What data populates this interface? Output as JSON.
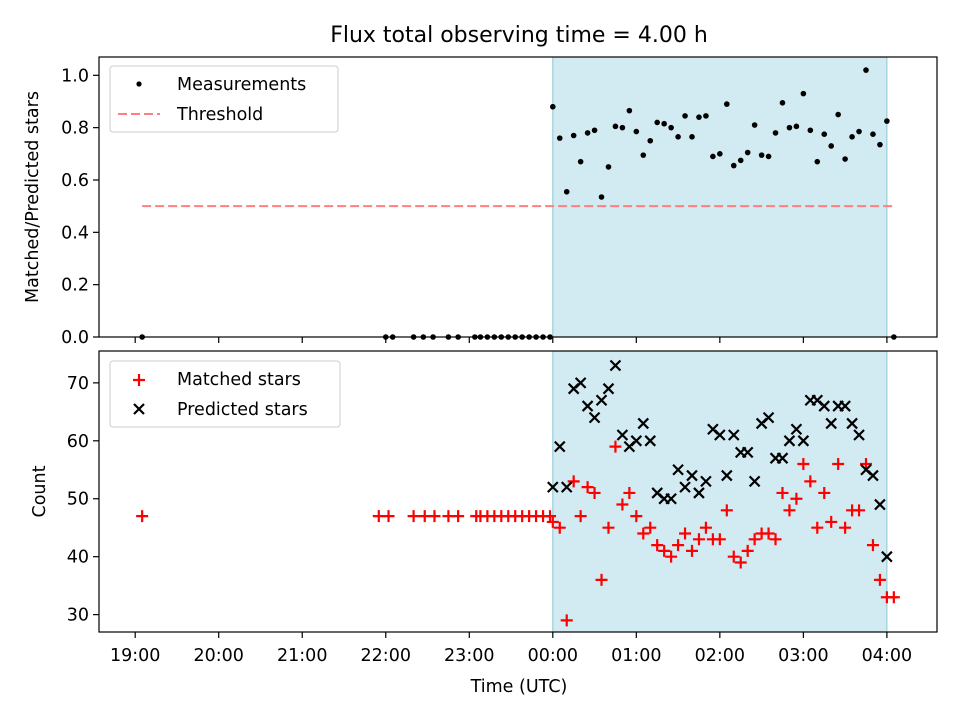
{
  "chart_data": [
    {
      "type": "scatter",
      "title": "Flux total observing time = 4.00 h",
      "ylabel": "Matched/Predicted stars",
      "xlabel": "",
      "ylim": [
        0,
        1.07
      ],
      "yticks": [
        "0.0",
        "0.2",
        "0.4",
        "0.6",
        "0.8",
        "1.0"
      ],
      "ytick_values": [
        0,
        0.2,
        0.4,
        0.6,
        0.8,
        1.0
      ],
      "grid": false,
      "legend_position": "top-left",
      "shaded_interval": {
        "start": "00:00",
        "end": "04:00",
        "color": "#add8e6"
      },
      "series": [
        {
          "name": "Measurements",
          "marker": "dot",
          "color": "#000000",
          "points": [
            [
              "19:05",
              0.0
            ],
            [
              "22:00",
              0.0
            ],
            [
              "22:05",
              0.0
            ],
            [
              "22:20",
              0.0
            ],
            [
              "22:27",
              0.0
            ],
            [
              "22:34",
              0.0
            ],
            [
              "22:45",
              0.0
            ],
            [
              "22:52",
              0.0
            ],
            [
              "23:04",
              0.0
            ],
            [
              "23:08",
              0.0
            ],
            [
              "23:13",
              0.0
            ],
            [
              "23:18",
              0.0
            ],
            [
              "23:23",
              0.0
            ],
            [
              "23:28",
              0.0
            ],
            [
              "23:33",
              0.0
            ],
            [
              "23:38",
              0.0
            ],
            [
              "23:43",
              0.0
            ],
            [
              "23:48",
              0.0
            ],
            [
              "23:53",
              0.0
            ],
            [
              "23:58",
              0.0
            ],
            [
              "00:00",
              0.88
            ],
            [
              "00:05",
              0.76
            ],
            [
              "00:10",
              0.555
            ],
            [
              "00:15",
              0.77
            ],
            [
              "00:20",
              0.67
            ],
            [
              "00:25",
              0.78
            ],
            [
              "00:30",
              0.79
            ],
            [
              "00:35",
              0.535
            ],
            [
              "00:40",
              0.65
            ],
            [
              "00:45",
              0.805
            ],
            [
              "00:50",
              0.8
            ],
            [
              "00:55",
              0.865
            ],
            [
              "01:00",
              0.785
            ],
            [
              "01:05",
              0.695
            ],
            [
              "01:10",
              0.75
            ],
            [
              "01:15",
              0.82
            ],
            [
              "01:20",
              0.815
            ],
            [
              "01:25",
              0.8
            ],
            [
              "01:30",
              0.765
            ],
            [
              "01:35",
              0.845
            ],
            [
              "01:40",
              0.765
            ],
            [
              "01:45",
              0.84
            ],
            [
              "01:50",
              0.845
            ],
            [
              "01:55",
              0.69
            ],
            [
              "02:00",
              0.7
            ],
            [
              "02:05",
              0.89
            ],
            [
              "02:10",
              0.655
            ],
            [
              "02:15",
              0.675
            ],
            [
              "02:20",
              0.705
            ],
            [
              "02:25",
              0.81
            ],
            [
              "02:30",
              0.695
            ],
            [
              "02:35",
              0.69
            ],
            [
              "02:40",
              0.78
            ],
            [
              "02:45",
              0.895
            ],
            [
              "02:50",
              0.8
            ],
            [
              "02:55",
              0.805
            ],
            [
              "03:00",
              0.93
            ],
            [
              "03:05",
              0.79
            ],
            [
              "03:10",
              0.67
            ],
            [
              "03:15",
              0.775
            ],
            [
              "03:20",
              0.73
            ],
            [
              "03:25",
              0.85
            ],
            [
              "03:30",
              0.68
            ],
            [
              "03:35",
              0.765
            ],
            [
              "03:40",
              0.785
            ],
            [
              "03:45",
              1.02
            ],
            [
              "03:50",
              0.775
            ],
            [
              "03:55",
              0.735
            ],
            [
              "04:00",
              0.825
            ],
            [
              "04:05",
              0.0
            ]
          ]
        },
        {
          "name": "Threshold",
          "type": "line",
          "style": "dashed",
          "color": "#ff7f7f",
          "points": [
            [
              "19:05",
              0.5
            ],
            [
              "04:05",
              0.5
            ]
          ]
        }
      ]
    },
    {
      "type": "scatter",
      "title": "",
      "ylabel": "Count",
      "xlabel": "Time (UTC)",
      "ylim": [
        27,
        75.5
      ],
      "yticks": [
        "30",
        "40",
        "50",
        "60",
        "70"
      ],
      "ytick_values": [
        30,
        40,
        50,
        60,
        70
      ],
      "xticks": [
        "19:00",
        "20:00",
        "21:00",
        "22:00",
        "23:00",
        "00:00",
        "01:00",
        "02:00",
        "03:00",
        "04:00"
      ],
      "grid": false,
      "legend_position": "top-left",
      "shaded_interval": {
        "start": "00:00",
        "end": "04:00",
        "color": "#add8e6"
      },
      "series": [
        {
          "name": "Matched stars",
          "marker": "plus",
          "color": "#ff0000",
          "points": [
            [
              "19:05",
              47
            ],
            [
              "21:55",
              47
            ],
            [
              "22:02",
              47
            ],
            [
              "22:20",
              47
            ],
            [
              "22:28",
              47
            ],
            [
              "22:35",
              47
            ],
            [
              "22:45",
              47
            ],
            [
              "22:52",
              47
            ],
            [
              "23:05",
              47
            ],
            [
              "23:08",
              47
            ],
            [
              "23:13",
              47
            ],
            [
              "23:18",
              47
            ],
            [
              "23:23",
              47
            ],
            [
              "23:28",
              47
            ],
            [
              "23:33",
              47
            ],
            [
              "23:38",
              47
            ],
            [
              "23:43",
              47
            ],
            [
              "23:48",
              47
            ],
            [
              "23:53",
              47
            ],
            [
              "23:58",
              47
            ],
            [
              "00:00",
              46
            ],
            [
              "00:05",
              45
            ],
            [
              "00:10",
              29
            ],
            [
              "00:15",
              53
            ],
            [
              "00:20",
              47
            ],
            [
              "00:25",
              52
            ],
            [
              "00:30",
              51
            ],
            [
              "00:35",
              36
            ],
            [
              "00:40",
              45
            ],
            [
              "00:45",
              59
            ],
            [
              "00:50",
              49
            ],
            [
              "00:55",
              51
            ],
            [
              "01:00",
              47
            ],
            [
              "01:05",
              44
            ],
            [
              "01:10",
              45
            ],
            [
              "01:15",
              42
            ],
            [
              "01:20",
              41
            ],
            [
              "01:25",
              40
            ],
            [
              "01:30",
              42
            ],
            [
              "01:35",
              44
            ],
            [
              "01:40",
              41
            ],
            [
              "01:45",
              43
            ],
            [
              "01:50",
              45
            ],
            [
              "01:55",
              43
            ],
            [
              "02:00",
              43
            ],
            [
              "02:05",
              48
            ],
            [
              "02:10",
              40
            ],
            [
              "02:15",
              39
            ],
            [
              "02:20",
              41
            ],
            [
              "02:25",
              43
            ],
            [
              "02:30",
              44
            ],
            [
              "02:35",
              44
            ],
            [
              "02:40",
              43
            ],
            [
              "02:45",
              51
            ],
            [
              "02:50",
              48
            ],
            [
              "02:55",
              50
            ],
            [
              "03:00",
              56
            ],
            [
              "03:05",
              53
            ],
            [
              "03:10",
              45
            ],
            [
              "03:15",
              51
            ],
            [
              "03:20",
              46
            ],
            [
              "03:25",
              56
            ],
            [
              "03:30",
              45
            ],
            [
              "03:35",
              48
            ],
            [
              "03:40",
              48
            ],
            [
              "03:45",
              56
            ],
            [
              "03:50",
              42
            ],
            [
              "03:55",
              36
            ],
            [
              "04:00",
              33
            ],
            [
              "04:05",
              33
            ]
          ]
        },
        {
          "name": "Predicted stars",
          "marker": "x",
          "color": "#000000",
          "points": [
            [
              "00:00",
              52
            ],
            [
              "00:05",
              59
            ],
            [
              "00:10",
              52
            ],
            [
              "00:15",
              69
            ],
            [
              "00:20",
              70
            ],
            [
              "00:25",
              66
            ],
            [
              "00:30",
              64
            ],
            [
              "00:35",
              67
            ],
            [
              "00:40",
              69
            ],
            [
              "00:45",
              73
            ],
            [
              "00:50",
              61
            ],
            [
              "00:55",
              59
            ],
            [
              "01:00",
              60
            ],
            [
              "01:05",
              63
            ],
            [
              "01:10",
              60
            ],
            [
              "01:15",
              51
            ],
            [
              "01:20",
              50
            ],
            [
              "01:25",
              50
            ],
            [
              "01:30",
              55
            ],
            [
              "01:35",
              52
            ],
            [
              "01:40",
              54
            ],
            [
              "01:45",
              51
            ],
            [
              "01:50",
              53
            ],
            [
              "01:55",
              62
            ],
            [
              "02:00",
              61
            ],
            [
              "02:05",
              54
            ],
            [
              "02:10",
              61
            ],
            [
              "02:15",
              58
            ],
            [
              "02:20",
              58
            ],
            [
              "02:25",
              53
            ],
            [
              "02:30",
              63
            ],
            [
              "02:35",
              64
            ],
            [
              "02:40",
              57
            ],
            [
              "02:45",
              57
            ],
            [
              "02:50",
              60
            ],
            [
              "02:55",
              62
            ],
            [
              "03:00",
              60
            ],
            [
              "03:05",
              67
            ],
            [
              "03:10",
              67
            ],
            [
              "03:15",
              66
            ],
            [
              "03:20",
              63
            ],
            [
              "03:25",
              66
            ],
            [
              "03:30",
              66
            ],
            [
              "03:35",
              63
            ],
            [
              "03:40",
              61
            ],
            [
              "03:45",
              55
            ],
            [
              "03:50",
              54
            ],
            [
              "03:55",
              49
            ],
            [
              "04:00",
              40
            ]
          ]
        }
      ]
    }
  ]
}
